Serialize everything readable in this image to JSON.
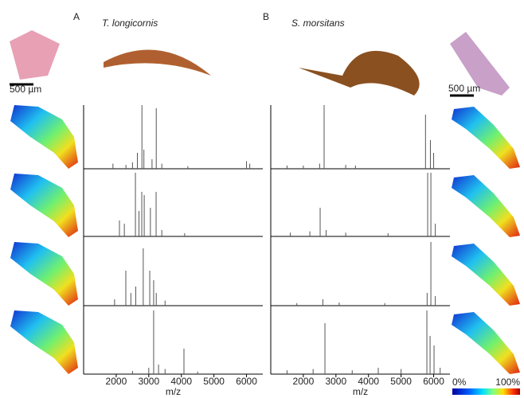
{
  "chart_data": [
    {
      "type": "stem",
      "label": "A",
      "title": "T. longicornis",
      "scale_bar": "500 µm",
      "xlabel": "m/z",
      "xlim": [
        1000,
        6500
      ],
      "xticks": [
        2000,
        3000,
        4000,
        5000,
        6000
      ],
      "ylim": [
        0,
        100
      ],
      "color": "#555555",
      "series": [
        {
          "x": [
            1900,
            2300,
            2500,
            2650,
            2790,
            2850,
            3100,
            3230,
            3400,
            4200,
            6000,
            6100
          ],
          "values": [
            8,
            6,
            10,
            25,
            100,
            30,
            15,
            95,
            8,
            4,
            12,
            8
          ]
        },
        {
          "x": [
            2100,
            2250,
            2590,
            2700,
            2785,
            2860,
            3050,
            3225,
            3400,
            4100
          ],
          "values": [
            25,
            20,
            100,
            40,
            70,
            65,
            45,
            70,
            10,
            5
          ]
        },
        {
          "x": [
            1950,
            2295,
            2450,
            2600,
            2830,
            3030,
            3150,
            3230,
            3500
          ],
          "values": [
            10,
            55,
            20,
            30,
            90,
            55,
            40,
            20,
            8
          ]
        },
        {
          "x": [
            2500,
            3000,
            3150,
            3300,
            3500,
            4080,
            4500
          ],
          "values": [
            5,
            10,
            100,
            15,
            8,
            40,
            4
          ]
        }
      ]
    },
    {
      "type": "stem",
      "label": "B",
      "title": "S. morsitans",
      "scale_bar": "500 µm",
      "xlabel": "m/z",
      "xlim": [
        1000,
        6500
      ],
      "xticks": [
        2000,
        3000,
        4000,
        5000,
        6000
      ],
      "ylim": [
        0,
        100
      ],
      "color": "#555555",
      "colorbar": {
        "min_label": "0%",
        "max_label": "100%"
      },
      "series": [
        {
          "x": [
            1500,
            2000,
            2500,
            2638,
            3300,
            3600,
            5750,
            5900,
            6000
          ],
          "values": [
            5,
            5,
            8,
            100,
            6,
            5,
            85,
            45,
            25
          ]
        },
        {
          "x": [
            1600,
            2200,
            2516,
            2700,
            3300,
            4600,
            5817,
            5915,
            6050
          ],
          "values": [
            6,
            8,
            45,
            10,
            6,
            5,
            100,
            100,
            20
          ]
        },
        {
          "x": [
            1800,
            2600,
            3100,
            4500,
            5800,
            5915,
            6050
          ],
          "values": [
            4,
            10,
            5,
            4,
            20,
            100,
            15
          ]
        },
        {
          "x": [
            1500,
            2300,
            2663,
            3500,
            4300,
            5000,
            5792,
            5890,
            6012,
            6200
          ],
          "values": [
            6,
            8,
            80,
            6,
            10,
            8,
            100,
            60,
            45,
            10
          ]
        }
      ]
    }
  ]
}
